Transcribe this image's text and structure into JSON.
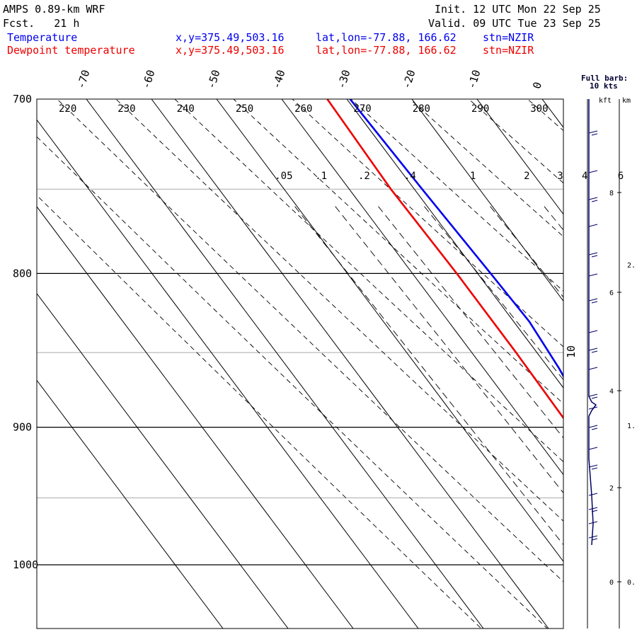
{
  "header": {
    "model": "AMPS 0.89-km WRF",
    "init": "Init. 12 UTC Mon 22 Sep 25",
    "fcst": "Fcst.   21 h",
    "valid": "Valid. 09 UTC Tue 23 Sep 25",
    "legend": [
      {
        "label": "Temperature",
        "xy": "x,y=375.49,503.16",
        "latlon": "lat,lon=-77.88, 166.62",
        "stn": "stn=NZIR",
        "color": "#0000ee"
      },
      {
        "label": "Dewpoint temperature",
        "xy": "x,y=375.49,503.16",
        "latlon": "lat,lon=-77.88, 166.62",
        "stn": "stn=NZIR",
        "color": "#ee0000"
      }
    ]
  },
  "chart_data": {
    "type": "line",
    "title": "AMPS 0.89-km WRF skew-T",
    "pressure_range_hPa": [
      700,
      1050
    ],
    "pressure_ticks": [
      "700",
      "800",
      "900",
      "1000"
    ],
    "isotherm_labels_C": [
      "-70",
      "-60",
      "-50",
      "-40",
      "-30",
      "-20",
      "-10",
      "0"
    ],
    "dry_adiabat_labels_K": [
      "220",
      "230",
      "240",
      "250",
      "260",
      "270",
      "280",
      "290",
      "300"
    ],
    "mixing_ratio_labels_gkg": [
      ".05",
      ".1",
      ".2",
      ".4",
      "1",
      "2",
      "3",
      "4",
      "6"
    ],
    "series": [
      {
        "name": "Temperature",
        "color": "#0000ee",
        "points": [
          [
            700,
            -29.5
          ],
          [
            750,
            -28.8
          ],
          [
            800,
            -28.0
          ],
          [
            830,
            -27.6
          ],
          [
            860,
            -28.4
          ],
          [
            880,
            -29.3
          ],
          [
            900,
            -29.0
          ],
          [
            930,
            -28.8
          ],
          [
            950,
            -28.2
          ],
          [
            970,
            -28.0
          ],
          [
            977,
            -28.6
          ],
          [
            985,
            -30.2
          ]
        ]
      },
      {
        "name": "Dewpoint temperature",
        "color": "#ee0000",
        "points": [
          [
            700,
            -33.0
          ],
          [
            750,
            -33.6
          ],
          [
            800,
            -33.2
          ],
          [
            850,
            -33.2
          ],
          [
            900,
            -33.5
          ],
          [
            930,
            -33.8
          ],
          [
            940,
            -34.6
          ],
          [
            955,
            -35.8
          ],
          [
            962,
            -36.0
          ],
          [
            970,
            -35.4
          ],
          [
            985,
            -32.8
          ]
        ]
      }
    ],
    "wind_panel": {
      "title": "Full barb:",
      "subtitle": "10 kts",
      "units_left": "kft",
      "units_right": "km",
      "kft_ticks": [
        "8",
        "6",
        "4",
        "2",
        "0"
      ],
      "km_ticks": [
        "2.",
        "1.",
        "0."
      ],
      "mixing_label": "10"
    }
  }
}
